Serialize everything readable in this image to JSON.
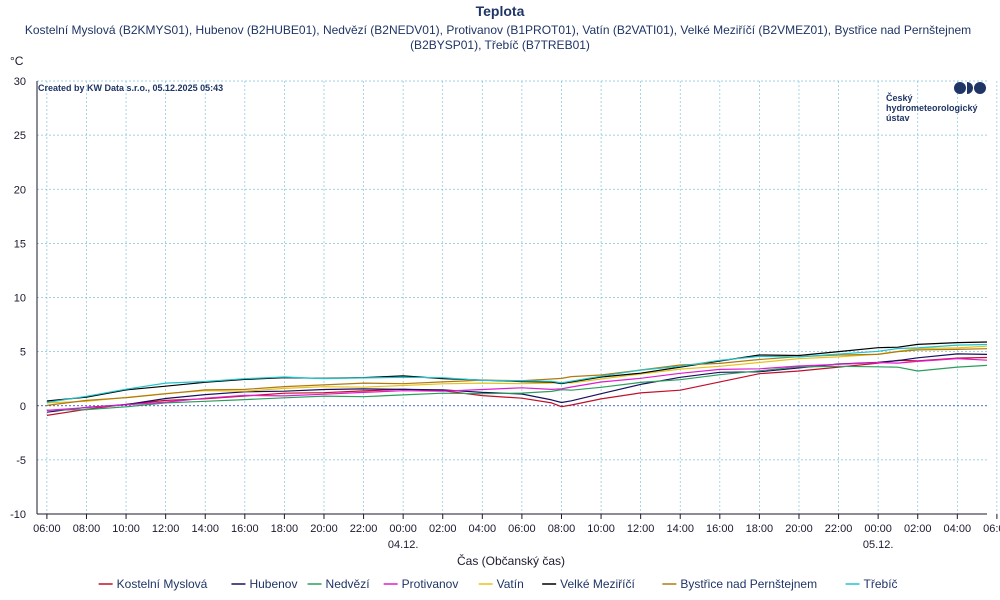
{
  "chart_data": {
    "type": "line",
    "title": "Teplota",
    "subtitle_lines": [
      "Kostelní Myslová (B2KMYS01), Hubenov (B2HUBE01), Nedvězí (B2NEDV01), Protivanov (B1PROT01), Vatín (B2VATI01), Velké Meziříčí (B2VMEZ01), Bystřice nad Pernštejnem",
      "(B2BYSP01), Třebíč (B7TREB01)"
    ],
    "ylabel": "°C",
    "xlabel": "Čas (Občanský čas)",
    "credit": "Created by KW Data s.r.o., 05.12.2025 05:43",
    "logo_lines": [
      "Český",
      "hydrometeorologický",
      "ústav"
    ],
    "ylim": [
      -10,
      30
    ],
    "yticks": [
      "-10",
      "-5",
      "0",
      "5",
      "10",
      "15",
      "20",
      "25",
      "30"
    ],
    "xlim": [
      -0.5,
      47.5
    ],
    "xticks": [
      {
        "h": 0,
        "label": "06:00"
      },
      {
        "h": 2,
        "label": "08:00"
      },
      {
        "h": 4,
        "label": "10:00"
      },
      {
        "h": 6,
        "label": "12:00"
      },
      {
        "h": 8,
        "label": "14:00"
      },
      {
        "h": 10,
        "label": "16:00"
      },
      {
        "h": 12,
        "label": "18:00"
      },
      {
        "h": 14,
        "label": "20:00"
      },
      {
        "h": 16,
        "label": "22:00"
      },
      {
        "h": 18,
        "label": "00:00"
      },
      {
        "h": 20,
        "label": "02:00"
      },
      {
        "h": 22,
        "label": "04:00"
      },
      {
        "h": 24,
        "label": "06:00"
      },
      {
        "h": 26,
        "label": "08:00"
      },
      {
        "h": 28,
        "label": "10:00"
      },
      {
        "h": 30,
        "label": "12:00"
      },
      {
        "h": 32,
        "label": "14:00"
      },
      {
        "h": 34,
        "label": "16:00"
      },
      {
        "h": 36,
        "label": "18:00"
      },
      {
        "h": 38,
        "label": "20:00"
      },
      {
        "h": 40,
        "label": "22:00"
      },
      {
        "h": 42,
        "label": "00:00"
      },
      {
        "h": 44,
        "label": "02:00"
      },
      {
        "h": 46,
        "label": "04:00"
      },
      {
        "h": 48,
        "label": "06:00"
      }
    ],
    "date_labels": [
      {
        "h": 18,
        "label": "04.12."
      },
      {
        "h": 42,
        "label": "05.12."
      }
    ],
    "x": [
      0,
      2,
      4,
      6,
      8,
      10,
      12,
      14,
      16,
      18,
      20,
      22,
      24,
      25.5,
      26,
      26.5,
      28,
      30,
      32,
      34,
      36,
      38,
      40,
      42,
      43,
      44,
      46,
      47.5
    ],
    "grid": true,
    "legend_position": "bottom",
    "series": [
      {
        "name": "Kostelní Myslová",
        "color": "#c0102a",
        "values": [
          -0.8,
          -0.3,
          0.1,
          0.4,
          0.7,
          0.9,
          1.1,
          1.3,
          1.4,
          1.5,
          1.3,
          1.0,
          0.7,
          0.2,
          0.0,
          0.1,
          0.6,
          1.1,
          1.5,
          2.2,
          2.9,
          3.3,
          3.6,
          3.9,
          4.1,
          4.2,
          4.4,
          4.4
        ]
      },
      {
        "name": "Hubenov",
        "color": "#1a1060",
        "values": [
          -0.6,
          -0.2,
          0.2,
          0.7,
          1.0,
          1.2,
          1.4,
          1.5,
          1.5,
          1.6,
          1.5,
          1.2,
          1.0,
          0.6,
          0.3,
          0.4,
          1.2,
          2.0,
          2.6,
          3.0,
          3.2,
          3.5,
          3.8,
          4.1,
          4.2,
          4.4,
          4.7,
          4.8
        ]
      },
      {
        "name": "Nedvězí",
        "color": "#2a9e5c",
        "values": [
          -0.5,
          -0.3,
          -0.1,
          0.2,
          0.5,
          0.6,
          0.7,
          0.8,
          0.9,
          1.0,
          1.1,
          1.2,
          1.2,
          1.3,
          1.4,
          1.5,
          1.7,
          2.1,
          2.5,
          2.9,
          3.2,
          3.5,
          3.7,
          3.6,
          3.5,
          3.3,
          3.6,
          3.7
        ]
      },
      {
        "name": "Protivanov",
        "color": "#e01ccf",
        "values": [
          -0.4,
          -0.2,
          0.0,
          0.4,
          0.7,
          0.9,
          1.0,
          1.1,
          1.2,
          1.3,
          1.4,
          1.5,
          1.6,
          1.6,
          1.6,
          1.7,
          2.1,
          2.6,
          3.0,
          3.3,
          3.5,
          3.7,
          3.8,
          3.9,
          4.0,
          4.1,
          4.3,
          4.3
        ]
      },
      {
        "name": "Vatín",
        "color": "#e8c21c",
        "values": [
          0.2,
          0.5,
          0.8,
          1.1,
          1.3,
          1.4,
          1.6,
          1.7,
          1.8,
          1.9,
          2.0,
          2.0,
          2.1,
          2.1,
          2.1,
          2.2,
          2.5,
          2.9,
          3.3,
          3.7,
          4.0,
          4.3,
          4.6,
          4.8,
          5.0,
          5.2,
          5.4,
          5.5
        ]
      },
      {
        "name": "Velké Meziříčí",
        "color": "#000000",
        "values": [
          0.5,
          0.8,
          1.4,
          1.9,
          2.2,
          2.4,
          2.5,
          2.6,
          2.6,
          2.7,
          2.6,
          2.4,
          2.2,
          2.1,
          2.1,
          2.2,
          2.6,
          3.1,
          3.6,
          4.1,
          4.6,
          4.7,
          5.0,
          5.3,
          5.5,
          5.7,
          5.8,
          5.8
        ]
      },
      {
        "name": "Bystřice nad Pernštejnem",
        "color": "#b07a10",
        "values": [
          0.0,
          0.4,
          0.8,
          1.1,
          1.4,
          1.6,
          1.8,
          1.9,
          2.0,
          2.1,
          2.2,
          2.3,
          2.4,
          2.5,
          2.5,
          2.6,
          2.9,
          3.3,
          3.7,
          4.0,
          4.3,
          4.5,
          4.6,
          4.8,
          5.0,
          5.1,
          5.3,
          5.3
        ]
      },
      {
        "name": "Třebíč",
        "color": "#20c4cc",
        "values": [
          0.4,
          0.9,
          1.5,
          2.0,
          2.3,
          2.5,
          2.6,
          2.6,
          2.6,
          2.6,
          2.5,
          2.4,
          2.3,
          2.2,
          2.2,
          2.3,
          2.7,
          3.2,
          3.7,
          4.2,
          4.5,
          4.6,
          4.8,
          5.0,
          5.2,
          5.4,
          5.6,
          5.6
        ]
      }
    ]
  }
}
